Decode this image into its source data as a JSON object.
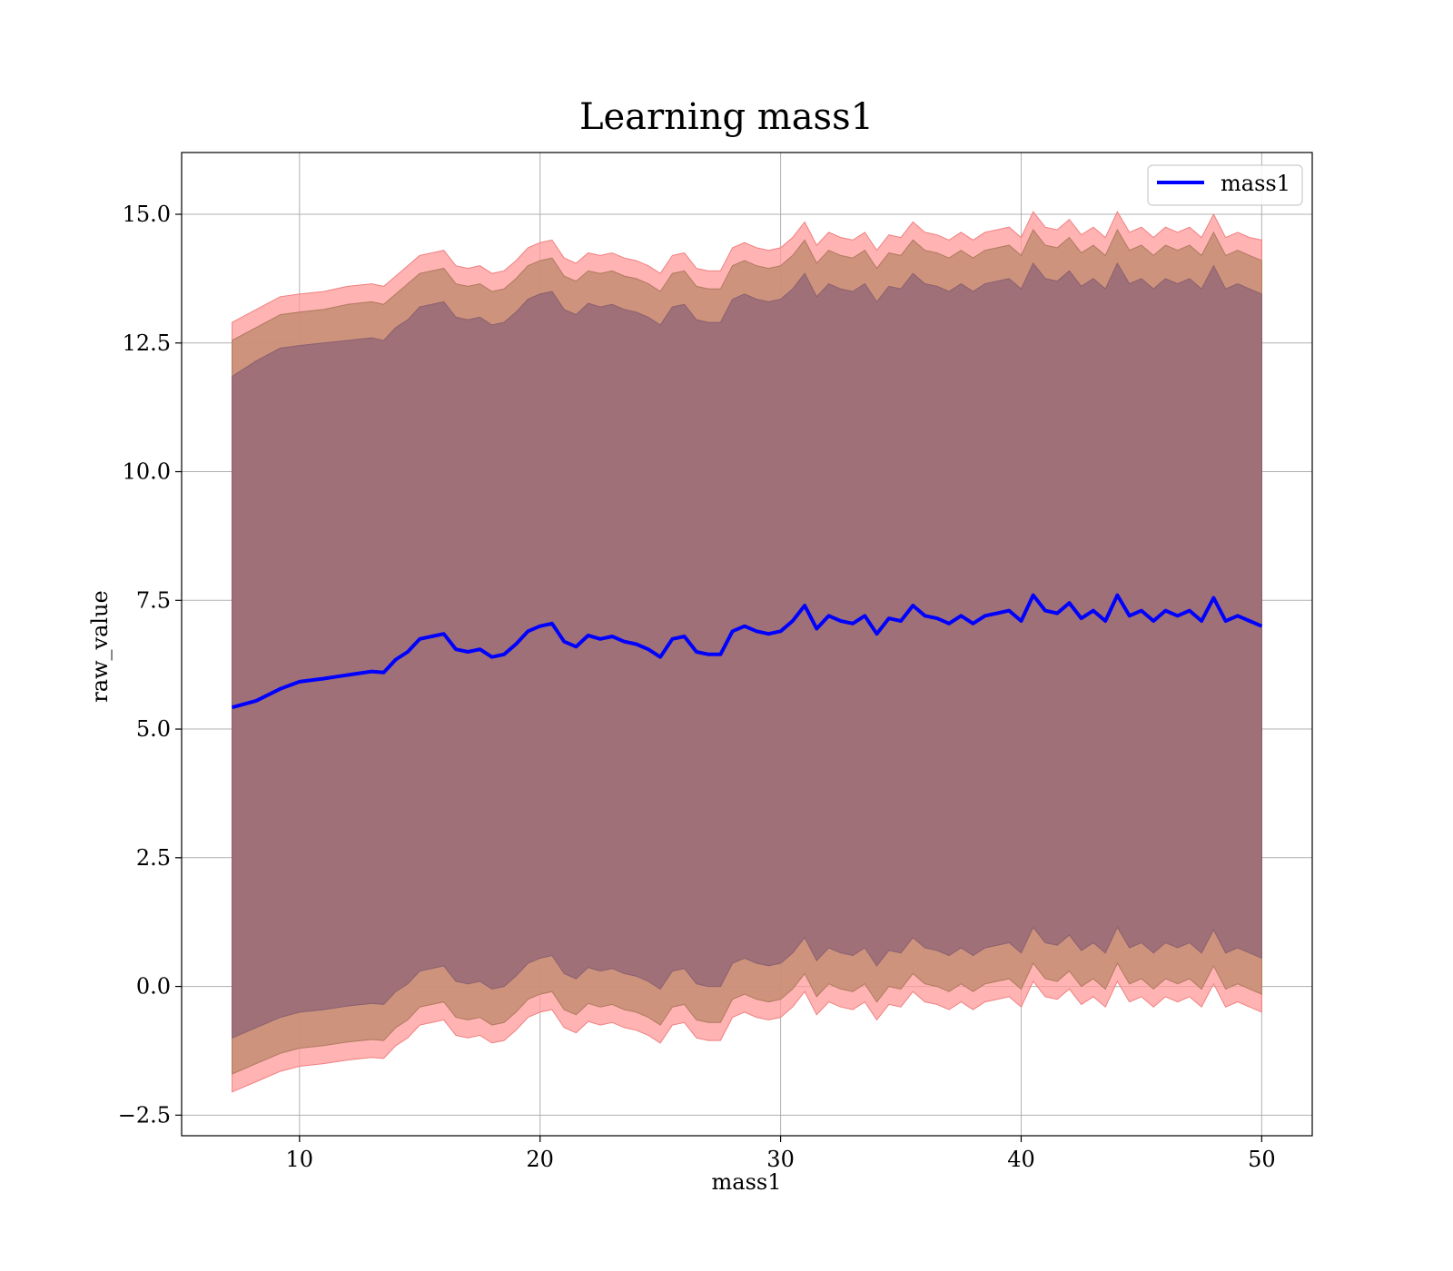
{
  "chart_data": {
    "type": "area",
    "title": "Learning mass1",
    "xlabel": "mass1",
    "ylabel": "raw_value",
    "xlim": [
      5.1,
      52.1
    ],
    "ylim": [
      -2.9,
      16.2
    ],
    "x_ticks": [
      10,
      20,
      30,
      40,
      50
    ],
    "y_ticks": [
      -2.5,
      0.0,
      2.5,
      5.0,
      7.5,
      10.0,
      12.5,
      15.0
    ],
    "x_tick_labels": [
      "10",
      "20",
      "30",
      "40",
      "50"
    ],
    "y_tick_labels": [
      "−2.5",
      "0.0",
      "2.5",
      "5.0",
      "7.5",
      "10.0",
      "12.5",
      "15.0"
    ],
    "grid": true,
    "legend": {
      "position": "top-right",
      "entries": [
        {
          "label": "mass1",
          "color": "#0000ff"
        }
      ]
    },
    "colors": {
      "mean_line": "#0000ff",
      "band_outer": "#ff9999",
      "band_middle": "#c88f76",
      "band_inner": "#a07078"
    },
    "x": [
      7.2,
      8.2,
      9.2,
      10.0,
      11.0,
      12.0,
      13.0,
      13.5,
      14.0,
      14.5,
      15.0,
      15.5,
      16.0,
      16.5,
      17.0,
      17.5,
      18.0,
      18.5,
      19.0,
      19.5,
      20.0,
      20.5,
      21.0,
      21.5,
      22.0,
      22.5,
      23.0,
      23.5,
      24.0,
      24.5,
      25.0,
      25.5,
      26.0,
      26.5,
      27.0,
      27.5,
      28.0,
      28.5,
      29.0,
      29.5,
      30.0,
      30.5,
      31.0,
      31.5,
      32.0,
      32.5,
      33.0,
      33.5,
      34.0,
      34.5,
      35.0,
      35.5,
      36.0,
      36.5,
      37.0,
      37.5,
      38.0,
      38.5,
      39.0,
      39.5,
      40.0,
      40.5,
      41.0,
      41.5,
      42.0,
      42.5,
      43.0,
      43.5,
      44.0,
      44.5,
      45.0,
      45.5,
      46.0,
      46.5,
      47.0,
      47.5,
      48.0,
      48.5,
      49.0,
      49.5,
      50.0
    ],
    "series": [
      {
        "name": "mass1",
        "role": "mean",
        "values": [
          5.42,
          5.55,
          5.78,
          5.92,
          5.98,
          6.05,
          6.12,
          6.1,
          6.35,
          6.5,
          6.75,
          6.8,
          6.85,
          6.55,
          6.5,
          6.55,
          6.4,
          6.45,
          6.65,
          6.9,
          7.0,
          7.05,
          6.7,
          6.6,
          6.82,
          6.75,
          6.8,
          6.7,
          6.65,
          6.55,
          6.4,
          6.75,
          6.8,
          6.5,
          6.45,
          6.45,
          6.9,
          7.0,
          6.9,
          6.85,
          6.9,
          7.1,
          7.4,
          6.95,
          7.2,
          7.1,
          7.05,
          7.2,
          6.85,
          7.15,
          7.1,
          7.4,
          7.2,
          7.15,
          7.05,
          7.2,
          7.05,
          7.2,
          7.25,
          7.3,
          7.1,
          7.6,
          7.3,
          7.25,
          7.45,
          7.15,
          7.3,
          7.1,
          7.6,
          7.2,
          7.3,
          7.1,
          7.3,
          7.2,
          7.3,
          7.1,
          7.55,
          7.1,
          7.2,
          7.1,
          7.0
        ]
      },
      {
        "role": "outer_upper",
        "values": [
          12.9,
          13.15,
          13.4,
          13.45,
          13.5,
          13.6,
          13.65,
          13.6,
          13.8,
          14.0,
          14.2,
          14.25,
          14.3,
          14.0,
          13.95,
          14.0,
          13.85,
          13.9,
          14.1,
          14.35,
          14.45,
          14.5,
          14.15,
          14.05,
          14.25,
          14.2,
          14.25,
          14.15,
          14.1,
          14.0,
          13.85,
          14.2,
          14.25,
          13.95,
          13.9,
          13.9,
          14.35,
          14.45,
          14.35,
          14.3,
          14.35,
          14.55,
          14.85,
          14.4,
          14.65,
          14.55,
          14.5,
          14.65,
          14.3,
          14.6,
          14.55,
          14.85,
          14.65,
          14.6,
          14.5,
          14.65,
          14.5,
          14.65,
          14.7,
          14.75,
          14.55,
          15.05,
          14.75,
          14.7,
          14.9,
          14.6,
          14.75,
          14.55,
          15.05,
          14.65,
          14.75,
          14.55,
          14.75,
          14.65,
          14.75,
          14.55,
          15.0,
          14.55,
          14.65,
          14.55,
          14.5
        ]
      },
      {
        "role": "middle_upper",
        "values": [
          12.55,
          12.8,
          13.05,
          13.1,
          13.15,
          13.25,
          13.3,
          13.25,
          13.45,
          13.65,
          13.85,
          13.9,
          13.95,
          13.65,
          13.6,
          13.65,
          13.5,
          13.55,
          13.75,
          14.0,
          14.1,
          14.15,
          13.8,
          13.7,
          13.9,
          13.85,
          13.9,
          13.8,
          13.75,
          13.65,
          13.5,
          13.85,
          13.9,
          13.6,
          13.55,
          13.55,
          14.0,
          14.1,
          14.0,
          13.95,
          14.0,
          14.2,
          14.5,
          14.05,
          14.3,
          14.2,
          14.15,
          14.3,
          13.95,
          14.25,
          14.2,
          14.5,
          14.3,
          14.25,
          14.15,
          14.3,
          14.15,
          14.3,
          14.35,
          14.4,
          14.2,
          14.7,
          14.4,
          14.35,
          14.55,
          14.25,
          14.4,
          14.2,
          14.7,
          14.3,
          14.4,
          14.2,
          14.4,
          14.3,
          14.4,
          14.2,
          14.65,
          14.2,
          14.3,
          14.2,
          14.1
        ]
      },
      {
        "role": "inner_upper",
        "values": [
          11.85,
          12.15,
          12.4,
          12.45,
          12.5,
          12.55,
          12.6,
          12.55,
          12.8,
          12.95,
          13.2,
          13.25,
          13.3,
          13.0,
          12.95,
          13.0,
          12.85,
          12.9,
          13.1,
          13.35,
          13.45,
          13.5,
          13.15,
          13.05,
          13.27,
          13.2,
          13.25,
          13.15,
          13.1,
          13.0,
          12.85,
          13.2,
          13.25,
          12.95,
          12.9,
          12.9,
          13.35,
          13.45,
          13.35,
          13.3,
          13.35,
          13.55,
          13.85,
          13.4,
          13.65,
          13.55,
          13.5,
          13.65,
          13.3,
          13.6,
          13.55,
          13.85,
          13.65,
          13.6,
          13.5,
          13.65,
          13.5,
          13.65,
          13.7,
          13.75,
          13.55,
          14.05,
          13.75,
          13.7,
          13.9,
          13.6,
          13.75,
          13.55,
          14.05,
          13.65,
          13.75,
          13.55,
          13.75,
          13.65,
          13.75,
          13.55,
          14.0,
          13.55,
          13.65,
          13.55,
          13.45
        ]
      },
      {
        "role": "inner_lower",
        "values": [
          -1.0,
          -0.8,
          -0.6,
          -0.5,
          -0.45,
          -0.38,
          -0.33,
          -0.35,
          -0.1,
          0.05,
          0.3,
          0.35,
          0.4,
          0.1,
          0.05,
          0.1,
          -0.05,
          0.0,
          0.2,
          0.45,
          0.55,
          0.6,
          0.25,
          0.15,
          0.37,
          0.3,
          0.35,
          0.25,
          0.2,
          0.1,
          -0.05,
          0.3,
          0.35,
          0.05,
          0.0,
          0.0,
          0.45,
          0.55,
          0.45,
          0.4,
          0.45,
          0.65,
          0.95,
          0.5,
          0.75,
          0.65,
          0.6,
          0.75,
          0.4,
          0.7,
          0.65,
          0.95,
          0.75,
          0.7,
          0.6,
          0.75,
          0.6,
          0.75,
          0.8,
          0.85,
          0.65,
          1.15,
          0.85,
          0.8,
          1.0,
          0.7,
          0.85,
          0.65,
          1.15,
          0.75,
          0.85,
          0.65,
          0.85,
          0.75,
          0.85,
          0.65,
          1.1,
          0.65,
          0.75,
          0.65,
          0.55
        ]
      },
      {
        "role": "middle_lower",
        "values": [
          -1.7,
          -1.5,
          -1.3,
          -1.2,
          -1.15,
          -1.08,
          -1.03,
          -1.05,
          -0.8,
          -0.65,
          -0.4,
          -0.35,
          -0.3,
          -0.6,
          -0.65,
          -0.6,
          -0.75,
          -0.7,
          -0.5,
          -0.25,
          -0.15,
          -0.1,
          -0.45,
          -0.55,
          -0.33,
          -0.4,
          -0.35,
          -0.45,
          -0.5,
          -0.6,
          -0.75,
          -0.4,
          -0.35,
          -0.65,
          -0.7,
          -0.7,
          -0.25,
          -0.15,
          -0.25,
          -0.3,
          -0.25,
          -0.05,
          0.25,
          -0.2,
          0.05,
          -0.05,
          -0.1,
          0.05,
          -0.3,
          0.0,
          -0.05,
          0.25,
          0.05,
          0.0,
          -0.1,
          0.05,
          -0.1,
          0.05,
          0.1,
          0.15,
          -0.05,
          0.45,
          0.15,
          0.1,
          0.3,
          0.0,
          0.15,
          -0.05,
          0.45,
          0.05,
          0.15,
          -0.05,
          0.15,
          0.05,
          0.15,
          -0.05,
          0.4,
          -0.05,
          0.05,
          -0.05,
          -0.15
        ]
      },
      {
        "role": "outer_lower",
        "values": [
          -2.05,
          -1.85,
          -1.65,
          -1.55,
          -1.5,
          -1.43,
          -1.38,
          -1.4,
          -1.15,
          -1.0,
          -0.75,
          -0.7,
          -0.65,
          -0.95,
          -1.0,
          -0.95,
          -1.1,
          -1.05,
          -0.85,
          -0.6,
          -0.5,
          -0.45,
          -0.8,
          -0.9,
          -0.68,
          -0.75,
          -0.7,
          -0.8,
          -0.85,
          -0.95,
          -1.1,
          -0.75,
          -0.7,
          -1.0,
          -1.05,
          -1.05,
          -0.6,
          -0.5,
          -0.6,
          -0.65,
          -0.6,
          -0.4,
          -0.1,
          -0.55,
          -0.3,
          -0.4,
          -0.45,
          -0.3,
          -0.65,
          -0.35,
          -0.4,
          -0.1,
          -0.3,
          -0.35,
          -0.45,
          -0.3,
          -0.45,
          -0.3,
          -0.25,
          -0.2,
          -0.4,
          0.1,
          -0.2,
          -0.25,
          -0.05,
          -0.35,
          -0.2,
          -0.4,
          0.1,
          -0.3,
          -0.2,
          -0.4,
          -0.2,
          -0.3,
          -0.2,
          -0.4,
          0.05,
          -0.4,
          -0.3,
          -0.4,
          -0.5
        ]
      }
    ]
  }
}
